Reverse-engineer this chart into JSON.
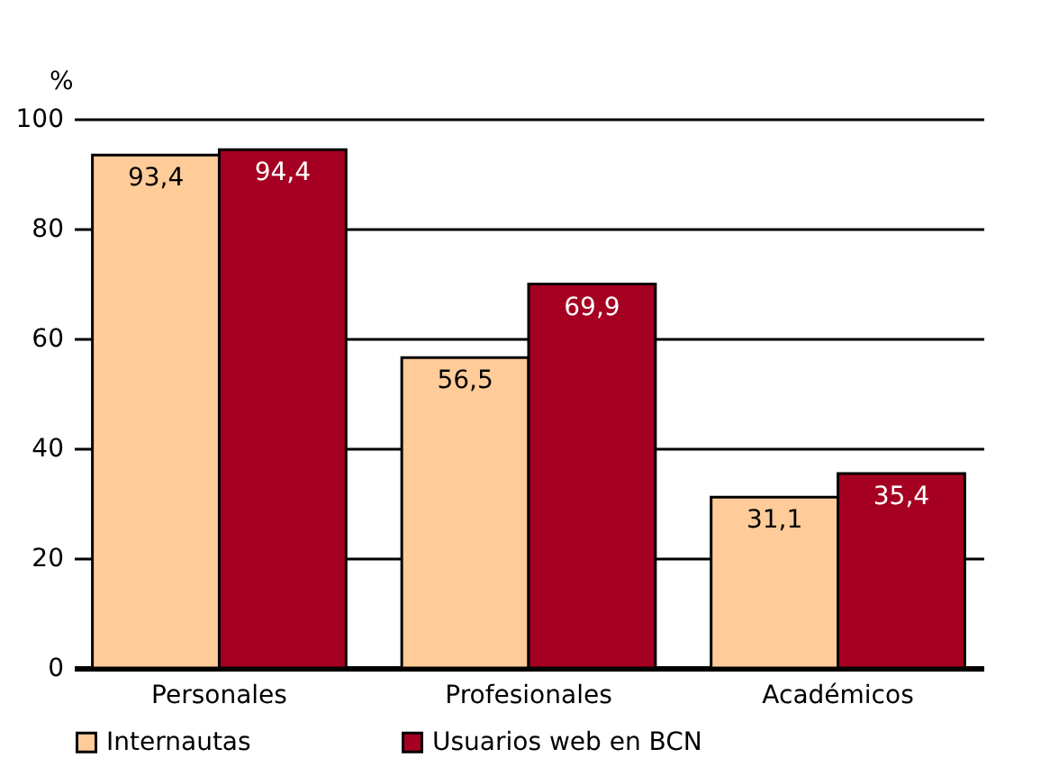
{
  "chart_data": {
    "type": "bar",
    "ylabel": "%",
    "categories": [
      "Personales",
      "Profesionales",
      "Académicos"
    ],
    "series": [
      {
        "name": "Internautas",
        "color": "#ffcc99",
        "values": [
          93.4,
          56.5,
          31.1
        ],
        "value_labels": [
          "93,4",
          "56,5",
          "31,1"
        ]
      },
      {
        "name": "Usuarios web en BCN",
        "color": "#a50021",
        "values": [
          94.4,
          69.9,
          35.4
        ],
        "value_labels": [
          "94,4",
          "69,9",
          "35,4"
        ]
      }
    ],
    "ylim": [
      0,
      100
    ],
    "yticks": [
      0,
      20,
      40,
      60,
      80,
      100
    ],
    "grid": "y",
    "legend": "bottom"
  }
}
